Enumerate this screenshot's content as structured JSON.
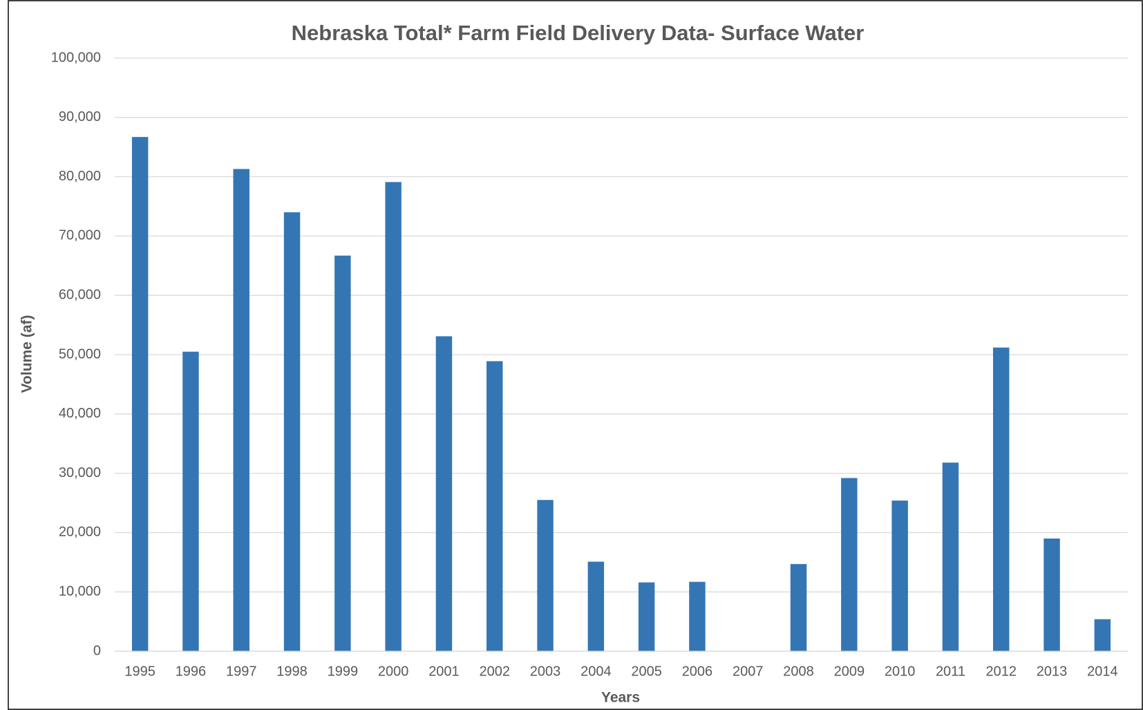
{
  "chart_data": {
    "type": "bar",
    "title": "Nebraska Total* Farm Field Delivery Data- Surface Water",
    "xlabel": "Years",
    "ylabel": "Volume (af)",
    "categories": [
      "1995",
      "1996",
      "1997",
      "1998",
      "1999",
      "2000",
      "2001",
      "2002",
      "2003",
      "2004",
      "2005",
      "2006",
      "2007",
      "2008",
      "2009",
      "2010",
      "2011",
      "2012",
      "2013",
      "2014"
    ],
    "values": [
      86700,
      50500,
      81300,
      74000,
      66700,
      79100,
      53100,
      48900,
      25500,
      15100,
      11600,
      11700,
      null,
      14700,
      29200,
      25400,
      31800,
      51200,
      19000,
      5400
    ],
    "color": "#3476b4",
    "ylim": [
      0,
      100000
    ],
    "yticks": [
      0,
      {
        "value": 10000,
        "label": "10,000"
      },
      {
        "value": 20000,
        "label": "20,000"
      },
      {
        "value": 30000,
        "label": "30,000"
      },
      {
        "value": 40000,
        "label": "40,000"
      },
      {
        "value": 50000,
        "label": "50,000"
      },
      {
        "value": 60000,
        "label": "60,000"
      },
      {
        "value": 70000,
        "label": "70,000"
      },
      {
        "value": 80000,
        "label": "80,000"
      },
      {
        "value": 90000,
        "label": "90,000"
      },
      {
        "value": 100000,
        "label": "100,000"
      }
    ],
    "grid": true
  }
}
